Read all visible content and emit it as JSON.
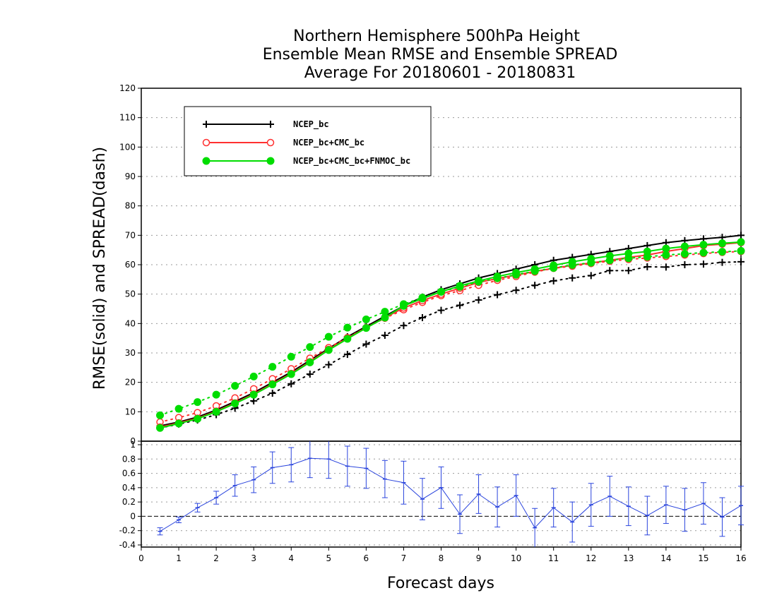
{
  "chart_data": {
    "type": "line",
    "title_lines": [
      "Northern Hemisphere 500hPa Height",
      "Ensemble Mean RMSE and Ensemble SPREAD",
      "Average For 20180601 - 20180831"
    ],
    "xlabel": "Forecast days",
    "ylabel": "RMSE(solid) and SPREAD(dash)",
    "xlim": [
      0,
      16
    ],
    "ylim": [
      0,
      120
    ],
    "x_ticks": [
      "0",
      "1",
      "2",
      "3",
      "4",
      "5",
      "6",
      "7",
      "8",
      "9",
      "10",
      "11",
      "12",
      "13",
      "14",
      "15",
      "16"
    ],
    "y_ticks": [
      "0",
      "10",
      "20",
      "30",
      "40",
      "50",
      "60",
      "70",
      "80",
      "90",
      "100",
      "110",
      "120"
    ],
    "lower_panel": {
      "ylim": [
        -0.4,
        1.0
      ],
      "y_ticks": [
        "-0.4",
        "-0.2",
        "0",
        "0.2",
        "0.4",
        "0.6",
        "0.8",
        "1"
      ]
    },
    "legend": {
      "position": "top-left",
      "entries": [
        "NCEP_bc",
        "NCEP_bc+CMC_bc",
        "NCEP_bc+CMC_bc+FNMOC_bc"
      ]
    },
    "x": [
      0.5,
      1,
      1.5,
      2,
      2.5,
      3,
      3.5,
      4,
      4.5,
      5,
      5.5,
      6,
      6.5,
      7,
      7.5,
      8,
      8.5,
      9,
      9.5,
      10,
      10.5,
      11,
      11.5,
      12,
      12.5,
      13,
      13.5,
      14,
      14.5,
      15,
      15.5,
      16
    ],
    "series": [
      {
        "name": "NCEP_bc",
        "color": "#000000",
        "marker": "plus",
        "rmse": [
          5.2,
          6.5,
          8.2,
          10.6,
          13.5,
          16.5,
          20,
          23.5,
          27.5,
          31.5,
          35.5,
          39,
          42.5,
          46,
          49,
          51.5,
          53.5,
          55.5,
          57,
          58.5,
          60,
          61.5,
          62.5,
          63.5,
          64.5,
          65.5,
          66.5,
          67.5,
          68.2,
          68.8,
          69.3,
          70
        ],
        "spread": [
          4.5,
          5.8,
          7.2,
          9,
          11.2,
          13.7,
          16.3,
          19.5,
          22.8,
          26,
          29.5,
          33,
          36,
          39.3,
          42,
          44.5,
          46.2,
          48,
          49.8,
          51.3,
          53,
          54.5,
          55.5,
          56.3,
          58,
          58,
          59.3,
          59.2,
          60,
          60.2,
          60.8,
          61
        ]
      },
      {
        "name": "NCEP_bc+CMC_bc",
        "color": "#ff3030",
        "marker": "open-circle",
        "rmse": [
          4.8,
          6.2,
          7.8,
          10.2,
          13,
          16,
          19.5,
          23,
          27,
          31.2,
          35,
          38.6,
          42,
          45.3,
          47.8,
          50,
          52,
          54,
          55.3,
          56.5,
          57.7,
          58.8,
          59.8,
          60.6,
          61.5,
          62.5,
          63.3,
          64.5,
          65.5,
          66.5,
          67,
          67.5
        ],
        "spread": [
          6.5,
          8,
          9.7,
          12,
          14.7,
          17.8,
          21.2,
          24.6,
          28.2,
          31.8,
          35.2,
          38.6,
          41.8,
          44.7,
          47.2,
          49.5,
          51.2,
          53,
          54.7,
          56,
          57.5,
          58.8,
          59.5,
          60.4,
          61.2,
          61.8,
          62.3,
          62.8,
          63.3,
          63.8,
          64.2,
          64.5
        ]
      },
      {
        "name": "NCEP_bc+CMC_bc+FNMOC_bc",
        "color": "#00dd00",
        "marker": "filled-circle",
        "rmse": [
          4.5,
          6,
          7.6,
          10,
          12.8,
          15.8,
          19.3,
          22.8,
          26.8,
          31,
          34.8,
          38.5,
          42,
          46,
          48.5,
          50.8,
          52.8,
          54.5,
          56,
          57.3,
          58.5,
          59.8,
          61,
          62,
          63,
          63.8,
          64.5,
          65.5,
          66.2,
          66.8,
          67.3,
          67.7
        ],
        "spread": [
          8.8,
          11,
          13.3,
          15.8,
          18.8,
          22,
          25.3,
          28.7,
          32,
          35.5,
          38.6,
          41.4,
          44,
          46.6,
          48.8,
          50.8,
          52.5,
          54.2,
          55.4,
          56.6,
          57.8,
          58.9,
          59.9,
          60.7,
          61.5,
          62.2,
          62.7,
          63.3,
          63.7,
          64.1,
          64.4,
          64.7
        ]
      }
    ],
    "difference": {
      "color": "#2a44dd",
      "values": [
        -0.21,
        -0.05,
        0.12,
        0.26,
        0.43,
        0.51,
        0.68,
        0.72,
        0.81,
        0.8,
        0.7,
        0.67,
        0.52,
        0.47,
        0.24,
        0.4,
        0.03,
        0.31,
        0.13,
        0.29,
        -0.16,
        0.12,
        -0.08,
        0.16,
        0.28,
        0.14,
        0.01,
        0.16,
        0.09,
        0.18,
        -0.01,
        0.15
      ],
      "error": [
        0.05,
        0.04,
        0.06,
        0.09,
        0.15,
        0.18,
        0.22,
        0.24,
        0.27,
        0.27,
        0.28,
        0.28,
        0.26,
        0.3,
        0.29,
        0.29,
        0.27,
        0.27,
        0.28,
        0.29,
        0.27,
        0.27,
        0.28,
        0.3,
        0.28,
        0.27,
        0.27,
        0.26,
        0.3,
        0.29,
        0.27,
        0.27
      ]
    }
  }
}
